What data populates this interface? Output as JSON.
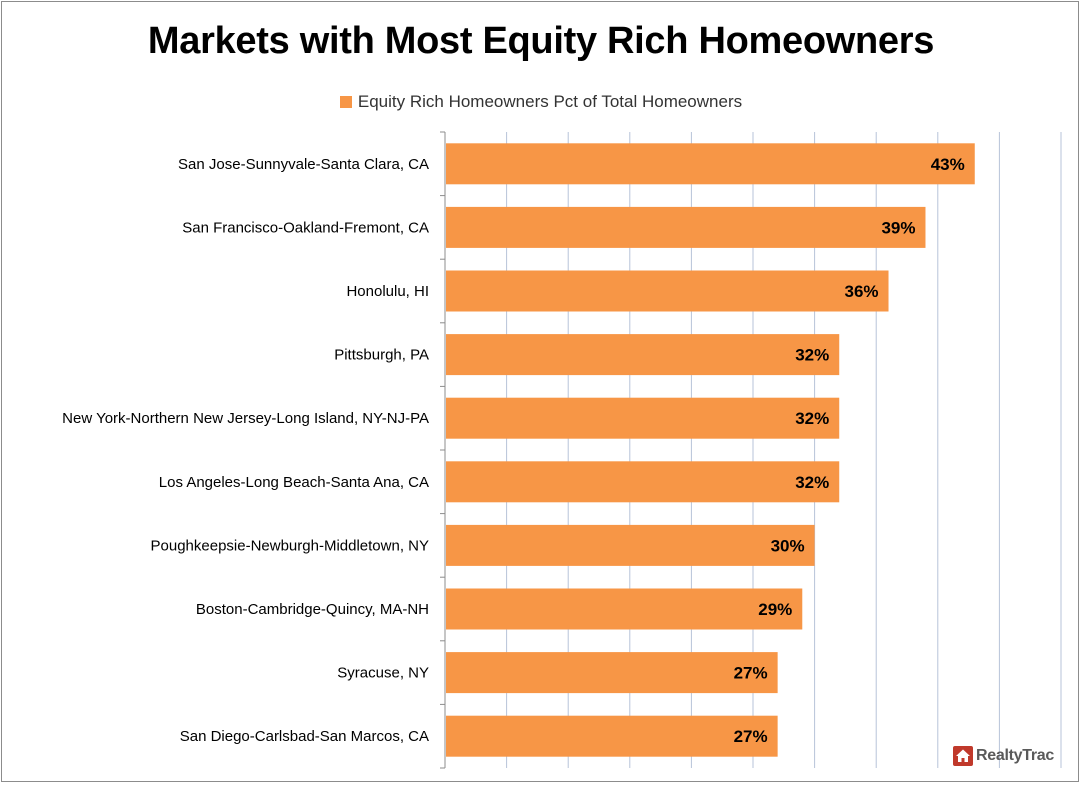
{
  "chart_data": {
    "type": "bar",
    "orientation": "horizontal",
    "title": "Markets with Most Equity Rich Homeowners",
    "legend": {
      "position": "top",
      "entries": [
        "Equity Rich Homeowners Pct of Total Homeowners"
      ]
    },
    "categories": [
      "San Jose-Sunnyvale-Santa Clara, CA",
      "San Francisco-Oakland-Fremont, CA",
      "Honolulu, HI",
      "Pittsburgh, PA",
      "New York-Northern New Jersey-Long Island, NY-NJ-PA",
      "Los Angeles-Long Beach-Santa Ana, CA",
      "Poughkeepsie-Newburgh-Middletown, NY",
      "Boston-Cambridge-Quincy, MA-NH",
      "Syracuse, NY",
      "San Diego-Carlsbad-San Marcos, CA"
    ],
    "series": [
      {
        "name": "Equity Rich Homeowners Pct of Total Homeowners",
        "values": [
          43,
          39,
          36,
          32,
          32,
          32,
          30,
          29,
          27,
          27
        ],
        "labels": [
          "43%",
          "39%",
          "36%",
          "32%",
          "32%",
          "32%",
          "30%",
          "29%",
          "27%",
          "27%"
        ],
        "color": "#f79646"
      }
    ],
    "xlim": [
      0,
      50
    ],
    "grid": "vertical",
    "xlabel": "",
    "ylabel": ""
  },
  "watermark": {
    "text": "RealtyTrac",
    "icon": "house-icon",
    "color": "#c0392b"
  }
}
